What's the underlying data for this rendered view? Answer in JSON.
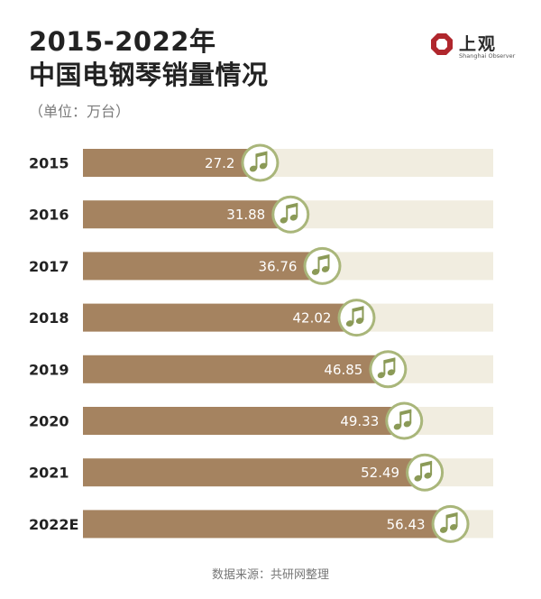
{
  "header": {
    "title_line1": "2015-2022年",
    "title_line2": "中国电钢琴销量情况",
    "unit": "（单位：万台）"
  },
  "brand": {
    "name": "上观",
    "subtitle": "Shanghai Observer",
    "logo_icon": "octagon-logo-icon",
    "color": "#b0272d"
  },
  "source": "数据来源：共研网整理",
  "colors": {
    "bar": "#a58360",
    "track": "#f1ede0",
    "icon_ring": "#a9b67a",
    "icon_fill": "#ffffff",
    "note": "#8b9a57",
    "value_text": "#ffffff",
    "category_text": "#222222"
  },
  "chart_data": {
    "type": "bar",
    "orientation": "horizontal",
    "title": "2015-2022年中国电钢琴销量情况",
    "xlabel": "",
    "ylabel": "",
    "unit": "万台",
    "categories": [
      "2015",
      "2016",
      "2017",
      "2018",
      "2019",
      "2020",
      "2021",
      "2022E"
    ],
    "values": [
      27.2,
      31.88,
      36.76,
      42.02,
      46.85,
      49.33,
      52.49,
      56.43
    ],
    "value_labels": [
      "27.2",
      "31.88",
      "36.76",
      "42.02",
      "46.85",
      "49.33",
      "52.49",
      "56.43"
    ],
    "xlim": [
      0,
      63
    ],
    "marker_icon": "music-note-icon",
    "grid": false,
    "legend": "none"
  }
}
